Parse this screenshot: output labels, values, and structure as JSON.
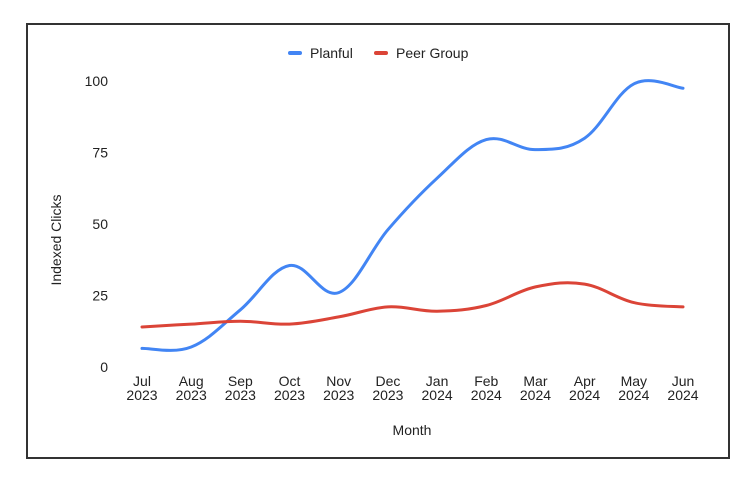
{
  "chart_data": {
    "type": "line",
    "title": "",
    "xlabel": "Month",
    "ylabel": "Indexed Clicks",
    "ylim": [
      0,
      100
    ],
    "yticks": [
      0,
      25,
      50,
      75,
      100
    ],
    "categories": [
      {
        "month": "Jul",
        "year": "2023"
      },
      {
        "month": "Aug",
        "year": "2023"
      },
      {
        "month": "Sep",
        "year": "2023"
      },
      {
        "month": "Oct",
        "year": "2023"
      },
      {
        "month": "Nov",
        "year": "2023"
      },
      {
        "month": "Dec",
        "year": "2023"
      },
      {
        "month": "Jan",
        "year": "2024"
      },
      {
        "month": "Feb",
        "year": "2024"
      },
      {
        "month": "Mar",
        "year": "2024"
      },
      {
        "month": "Apr",
        "year": "2024"
      },
      {
        "month": "May",
        "year": "2024"
      },
      {
        "month": "Jun",
        "year": "2024"
      }
    ],
    "series": [
      {
        "name": "Planful",
        "color": "#4285f4",
        "values": [
          6.5,
          7,
          20,
          35.5,
          26,
          48,
          66,
          79.5,
          76,
          80,
          99,
          97.5
        ]
      },
      {
        "name": "Peer Group",
        "color": "#db4437",
        "values": [
          14,
          15,
          16,
          15,
          17.5,
          21,
          19.5,
          21.5,
          28,
          29,
          22.5,
          21
        ]
      }
    ],
    "grid": false,
    "legend": "top"
  }
}
